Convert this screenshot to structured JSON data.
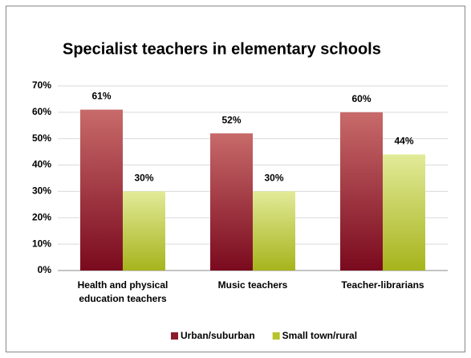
{
  "chart_data": {
    "type": "bar",
    "title": "Specialist teachers in elementary schools",
    "categories": [
      "Health and physical education teachers",
      "Music teachers",
      "Teacher-librarians"
    ],
    "series": [
      {
        "name": "Urban/suburban",
        "color": "#8b1a2b",
        "values": [
          61,
          52,
          60
        ],
        "value_labels": [
          "61%",
          "52%",
          "60%"
        ]
      },
      {
        "name": "Small town/rural",
        "color": "#b8c42c",
        "values": [
          30,
          30,
          44
        ],
        "value_labels": [
          "30%",
          "30%",
          "44%"
        ]
      }
    ],
    "ylim": [
      0,
      70
    ],
    "yticks": [
      {
        "value": 0,
        "label": "0%"
      },
      {
        "value": 10,
        "label": "10%"
      },
      {
        "value": 20,
        "label": "20%"
      },
      {
        "value": 30,
        "label": "30%"
      },
      {
        "value": 40,
        "label": "40%"
      },
      {
        "value": 50,
        "label": "50%"
      },
      {
        "value": 60,
        "label": "60%"
      },
      {
        "value": 70,
        "label": "70%"
      }
    ],
    "grid": true,
    "legend": "bottom"
  }
}
